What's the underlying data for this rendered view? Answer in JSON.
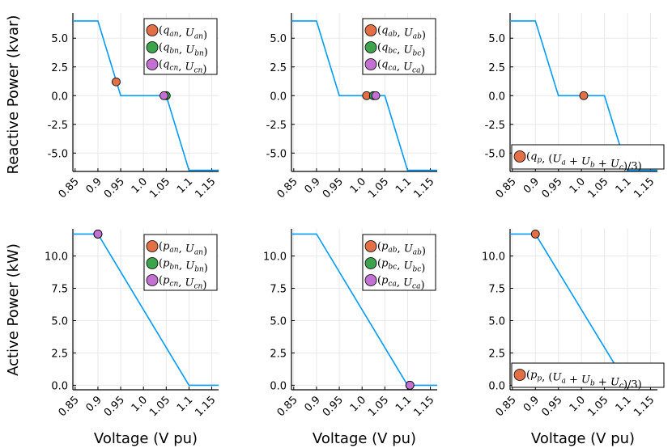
{
  "colors": {
    "line": "#009AFA",
    "phase_a": "#E26F46",
    "phase_b": "#3DA44D",
    "phase_c": "#C271D2",
    "grid": "#E8E8E8",
    "axis": "#000000"
  },
  "labels": {
    "ylabel_top": "Reactive Power (kvar)",
    "ylabel_bottom": "Active Power (kW)",
    "xlabel": "Voltage (V pu)"
  },
  "chart_data": [
    {
      "id": "q_wye",
      "type": "line",
      "row": 0,
      "col": 0,
      "xlim": [
        0.845,
        1.165
      ],
      "ylim": [
        -6.6,
        7.2
      ],
      "xticks": [
        0.85,
        0.9,
        0.95,
        1.0,
        1.05,
        1.1,
        1.15
      ],
      "xticklabels": [
        "0.85",
        "0.9",
        "0.95",
        "1.0",
        "1.05",
        "1.1",
        "1.15"
      ],
      "yticks": [
        -5.0,
        -2.5,
        0.0,
        2.5,
        5.0
      ],
      "yticklabels": [
        "-5.0",
        "-2.5",
        "0.0",
        "2.5",
        "5.0"
      ],
      "curve": {
        "x": [
          0.845,
          0.9,
          0.95,
          1.05,
          1.1,
          1.165
        ],
        "y": [
          6.5,
          6.5,
          0.0,
          0.0,
          -6.5,
          -6.5
        ]
      },
      "points": [
        {
          "label": "(q_an, U_an)",
          "legend": "(q_an, U_an)",
          "color": "phase_a",
          "x": 0.94,
          "y": 1.2
        },
        {
          "label": "(q_bn, U_bn)",
          "legend": "(q_bn, U_bn)",
          "color": "phase_b",
          "x": 1.05,
          "y": 0.0
        },
        {
          "label": "(q_cn, U_cn)",
          "legend": "(q_cn, U_cn)",
          "color": "phase_c",
          "x": 1.045,
          "y": 0.0
        }
      ],
      "legend_position": "top-right"
    },
    {
      "id": "q_delta",
      "type": "line",
      "row": 0,
      "col": 1,
      "xlim": [
        0.845,
        1.165
      ],
      "ylim": [
        -6.6,
        7.2
      ],
      "xticks": [
        0.85,
        0.9,
        0.95,
        1.0,
        1.05,
        1.1,
        1.15
      ],
      "xticklabels": [
        "0.85",
        "0.9",
        "0.95",
        "1.0",
        "1.05",
        "1.1",
        "1.15"
      ],
      "yticks": [
        -5.0,
        -2.5,
        0.0,
        2.5,
        5.0
      ],
      "yticklabels": [
        "-5.0",
        "-2.5",
        "0.0",
        "2.5",
        "5.0"
      ],
      "curve": {
        "x": [
          0.845,
          0.9,
          0.95,
          1.05,
          1.1,
          1.165
        ],
        "y": [
          6.5,
          6.5,
          0.0,
          0.0,
          -6.5,
          -6.5
        ]
      },
      "points": [
        {
          "label": "(q_ab, U_ab)",
          "legend": "(q_ab, U_ab)",
          "color": "phase_a",
          "x": 1.01,
          "y": 0.0
        },
        {
          "label": "(q_bc, U_bc)",
          "legend": "(q_bc, U_bc)",
          "color": "phase_b",
          "x": 1.025,
          "y": 0.0
        },
        {
          "label": "(q_ca, U_ca)",
          "legend": "(q_ca, U_ca)",
          "color": "phase_c",
          "x": 1.03,
          "y": 0.0
        }
      ],
      "legend_position": "top-right"
    },
    {
      "id": "q_pos",
      "type": "line",
      "row": 0,
      "col": 2,
      "xlim": [
        0.845,
        1.165
      ],
      "ylim": [
        -6.6,
        7.2
      ],
      "xticks": [
        0.85,
        0.9,
        0.95,
        1.0,
        1.05,
        1.1,
        1.15
      ],
      "xticklabels": [
        "0.85",
        "0.9",
        "0.95",
        "1.0",
        "1.05",
        "1.1",
        "1.15"
      ],
      "yticks": [
        -5.0,
        -2.5,
        0.0,
        2.5,
        5.0
      ],
      "yticklabels": [
        "-5.0",
        "-2.5",
        "0.0",
        "2.5",
        "5.0"
      ],
      "curve": {
        "x": [
          0.845,
          0.9,
          0.95,
          1.05,
          1.1,
          1.165
        ],
        "y": [
          6.5,
          6.5,
          0.0,
          0.0,
          -6.5,
          -6.5
        ]
      },
      "points": [
        {
          "label": "(q_p, (U_a + U_b + U_c)/3)",
          "legend": "(q_p, (U_a + U_b + U_c)/3)",
          "color": "phase_a",
          "x": 1.005,
          "y": 0.0
        }
      ],
      "legend_position": "bottom-right"
    },
    {
      "id": "p_wye",
      "type": "line",
      "row": 1,
      "col": 0,
      "xlim": [
        0.845,
        1.165
      ],
      "ylim": [
        -0.35,
        12.1
      ],
      "xticks": [
        0.85,
        0.9,
        0.95,
        1.0,
        1.05,
        1.1,
        1.15
      ],
      "xticklabels": [
        "0.85",
        "0.9",
        "0.95",
        "1.0",
        "1.05",
        "1.1",
        "1.15"
      ],
      "yticks": [
        0.0,
        2.5,
        5.0,
        7.5,
        10.0
      ],
      "yticklabels": [
        "0.0",
        "2.5",
        "5.0",
        "7.5",
        "10.0"
      ],
      "curve": {
        "x": [
          0.845,
          0.9,
          1.1,
          1.165
        ],
        "y": [
          11.7,
          11.7,
          0.0,
          0.0
        ]
      },
      "points": [
        {
          "label": "(p_an, U_an)",
          "legend": "(p_an, U_an)",
          "color": "phase_a",
          "x": 0.9,
          "y": 11.7
        },
        {
          "label": "(p_bn, U_bn)",
          "legend": "(p_bn, U_bn)",
          "color": "phase_b",
          "x": 0.9,
          "y": 11.7
        },
        {
          "label": "(p_cn, U_cn)",
          "legend": "(p_cn, U_cn)",
          "color": "phase_c",
          "x": 0.9,
          "y": 11.7
        }
      ],
      "legend_position": "top-right"
    },
    {
      "id": "p_delta",
      "type": "line",
      "row": 1,
      "col": 1,
      "xlim": [
        0.845,
        1.165
      ],
      "ylim": [
        -0.35,
        12.1
      ],
      "xticks": [
        0.85,
        0.9,
        0.95,
        1.0,
        1.05,
        1.1,
        1.15
      ],
      "xticklabels": [
        "0.85",
        "0.9",
        "0.95",
        "1.0",
        "1.05",
        "1.1",
        "1.15"
      ],
      "yticks": [
        0.0,
        2.5,
        5.0,
        7.5,
        10.0
      ],
      "yticklabels": [
        "0.0",
        "2.5",
        "5.0",
        "7.5",
        "10.0"
      ],
      "curve": {
        "x": [
          0.845,
          0.9,
          1.1,
          1.165
        ],
        "y": [
          11.7,
          11.7,
          0.0,
          0.0
        ]
      },
      "points": [
        {
          "label": "(p_ab, U_ab)",
          "legend": "(p_ab, U_ab)",
          "color": "phase_a",
          "x": 1.105,
          "y": 0.0
        },
        {
          "label": "(p_bc, U_bc)",
          "legend": "(p_bc, U_bc)",
          "color": "phase_b",
          "x": 1.105,
          "y": 0.0
        },
        {
          "label": "(p_ca, U_ca)",
          "legend": "(p_ca, U_ca)",
          "color": "phase_c",
          "x": 1.105,
          "y": 0.0
        }
      ],
      "legend_position": "top-right"
    },
    {
      "id": "p_pos",
      "type": "line",
      "row": 1,
      "col": 2,
      "xlim": [
        0.845,
        1.165
      ],
      "ylim": [
        -0.35,
        12.1
      ],
      "xticks": [
        0.85,
        0.9,
        0.95,
        1.0,
        1.05,
        1.1,
        1.15
      ],
      "xticklabels": [
        "0.85",
        "0.9",
        "0.95",
        "1.0",
        "1.05",
        "1.1",
        "1.15"
      ],
      "yticks": [
        0.0,
        2.5,
        5.0,
        7.5,
        10.0
      ],
      "yticklabels": [
        "0.0",
        "2.5",
        "5.0",
        "7.5",
        "10.0"
      ],
      "curve": {
        "x": [
          0.845,
          0.9,
          1.1,
          1.165
        ],
        "y": [
          11.7,
          11.7,
          0.0,
          0.0
        ]
      },
      "points": [
        {
          "label": "(p_p, (U_a + U_b + U_c)/3)",
          "legend": "(p_p, (U_a + U_b + U_c)/3)",
          "color": "phase_a",
          "x": 0.9,
          "y": 11.7
        }
      ],
      "legend_position": "bottom-right"
    }
  ]
}
